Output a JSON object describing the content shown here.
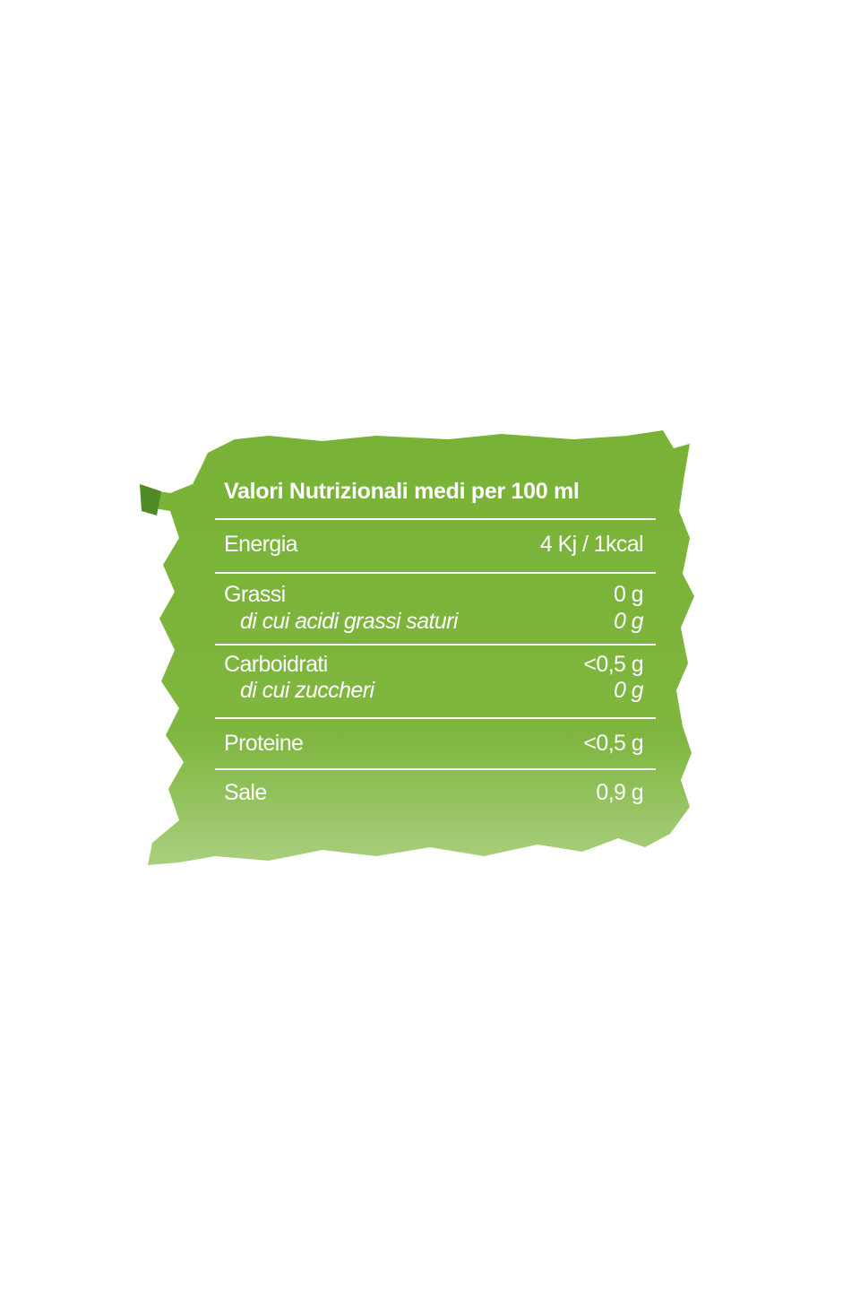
{
  "table": {
    "title": "Valori Nutrizionali medi per 100 ml",
    "groups": [
      {
        "label": "Energia",
        "value": "4 Kj / 1kcal"
      },
      {
        "label": "Grassi",
        "value": "0 g",
        "sub_label": "di cui acidi grassi saturi",
        "sub_value": "0 g"
      },
      {
        "label": "Carboidrati",
        "value": "<0,5 g",
        "sub_label": "di cui zuccheri",
        "sub_value": "0 g"
      },
      {
        "label": "Proteine",
        "value": "<0,5 g"
      },
      {
        "label": "Sale",
        "value": "0,9 g"
      }
    ]
  }
}
